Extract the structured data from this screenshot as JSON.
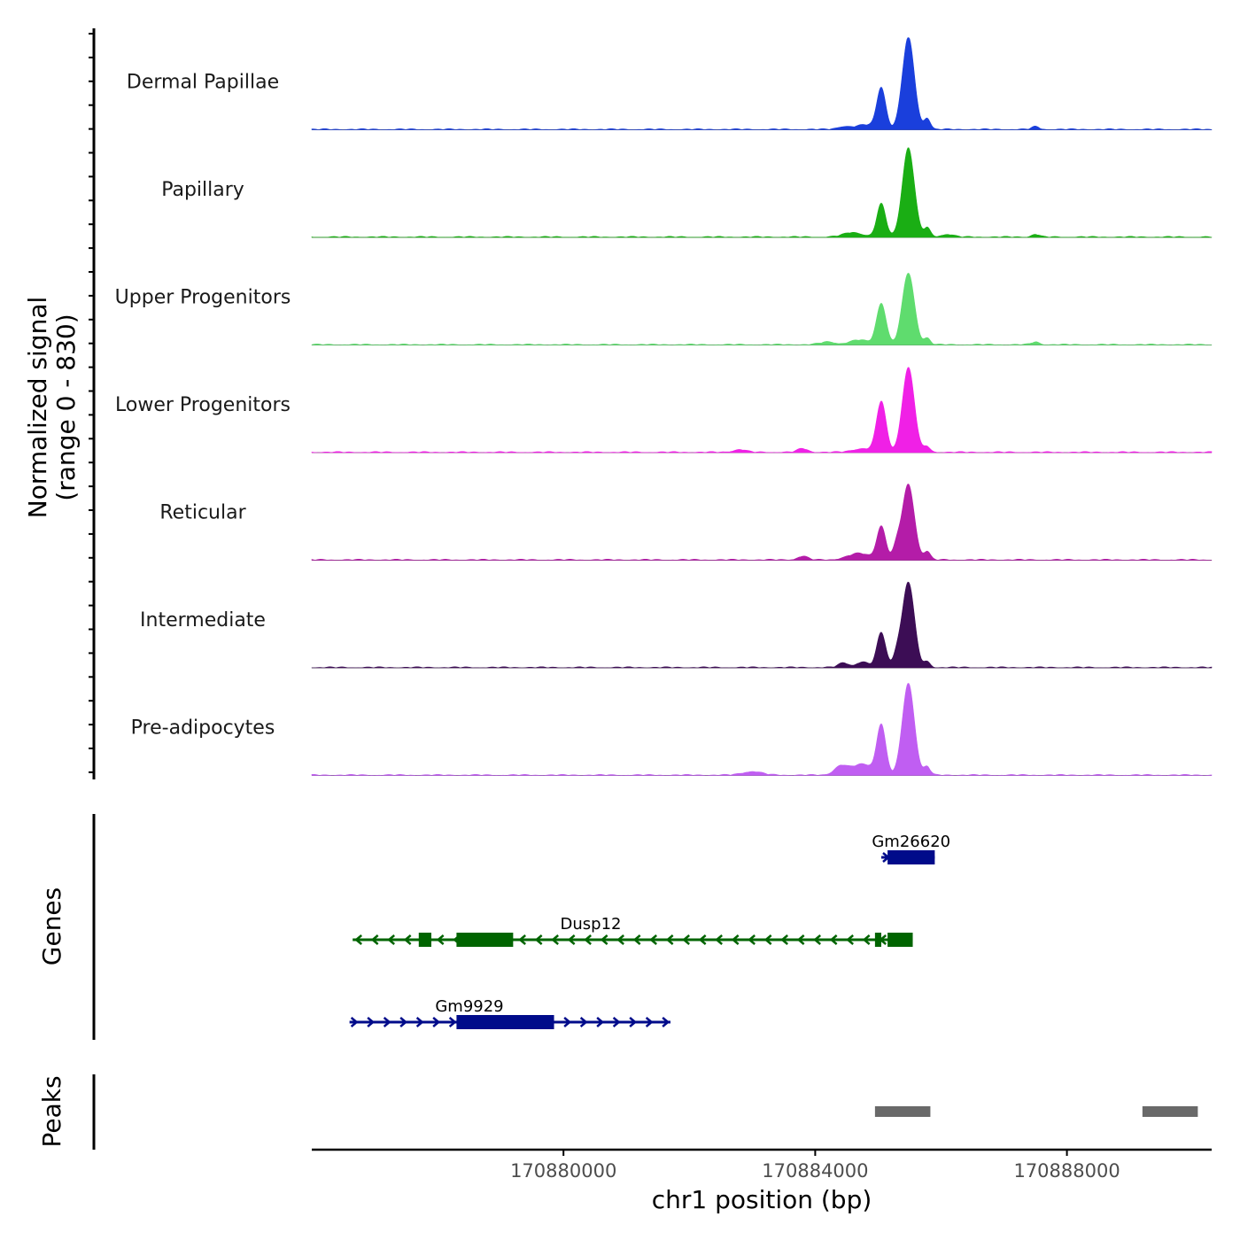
{
  "chart_data": {
    "type": "area",
    "title": "",
    "signal_axis_label": [
      "Normalized signal",
      "(range 0 - 830)"
    ],
    "ylim": [
      0,
      830
    ],
    "xlabel": "chr1 position (bp)",
    "xlim": [
      170876000,
      170890300
    ],
    "x_ticks": [
      170880000,
      170884000,
      170888000
    ],
    "x_tick_labels": [
      "170880000",
      "170884000",
      "170888000"
    ],
    "tracks": [
      {
        "name": "Dermal Papillae",
        "color": "#1a3fdc",
        "peaks": [
          {
            "x": 170885050,
            "h": 0.45,
            "w": 70
          },
          {
            "x": 170885480,
            "h": 1.0,
            "w": 95
          },
          {
            "x": 170885780,
            "h": 0.12,
            "w": 50
          },
          {
            "x": 170884800,
            "h": 0.05,
            "w": 150
          },
          {
            "x": 170884450,
            "h": 0.03,
            "w": 100
          },
          {
            "x": 170887500,
            "h": 0.03,
            "w": 60
          }
        ]
      },
      {
        "name": "Papillary",
        "color": "#1aae14",
        "peaks": [
          {
            "x": 170885050,
            "h": 0.36,
            "w": 70
          },
          {
            "x": 170885480,
            "h": 0.97,
            "w": 95
          },
          {
            "x": 170885780,
            "h": 0.1,
            "w": 50
          },
          {
            "x": 170884600,
            "h": 0.05,
            "w": 150
          },
          {
            "x": 170886100,
            "h": 0.03,
            "w": 100
          },
          {
            "x": 170887500,
            "h": 0.03,
            "w": 60
          }
        ]
      },
      {
        "name": "Upper Progenitors",
        "color": "#5fdc6e",
        "peaks": [
          {
            "x": 170885050,
            "h": 0.45,
            "w": 75
          },
          {
            "x": 170885480,
            "h": 0.78,
            "w": 95
          },
          {
            "x": 170885780,
            "h": 0.07,
            "w": 50
          },
          {
            "x": 170884700,
            "h": 0.05,
            "w": 150
          },
          {
            "x": 170884200,
            "h": 0.03,
            "w": 120
          },
          {
            "x": 170887500,
            "h": 0.03,
            "w": 60
          }
        ]
      },
      {
        "name": "Lower Progenitors",
        "color": "#f020e6",
        "peaks": [
          {
            "x": 170885050,
            "h": 0.55,
            "w": 75
          },
          {
            "x": 170885480,
            "h": 0.92,
            "w": 95
          },
          {
            "x": 170885780,
            "h": 0.06,
            "w": 50
          },
          {
            "x": 170884750,
            "h": 0.04,
            "w": 150
          },
          {
            "x": 170882800,
            "h": 0.03,
            "w": 100
          },
          {
            "x": 170883800,
            "h": 0.04,
            "w": 80
          }
        ]
      },
      {
        "name": "Reticular",
        "color": "#b41ca8",
        "peaks": [
          {
            "x": 170885050,
            "h": 0.36,
            "w": 70
          },
          {
            "x": 170885480,
            "h": 0.82,
            "w": 95
          },
          {
            "x": 170885780,
            "h": 0.09,
            "w": 50
          },
          {
            "x": 170884700,
            "h": 0.07,
            "w": 180
          },
          {
            "x": 170883800,
            "h": 0.04,
            "w": 80
          },
          {
            "x": 170885300,
            "h": 0.14,
            "w": 60
          }
        ]
      },
      {
        "name": "Intermediate",
        "color": "#3c0d55",
        "peaks": [
          {
            "x": 170885050,
            "h": 0.38,
            "w": 70
          },
          {
            "x": 170885480,
            "h": 0.93,
            "w": 95
          },
          {
            "x": 170885780,
            "h": 0.06,
            "w": 50
          },
          {
            "x": 170885300,
            "h": 0.13,
            "w": 60
          },
          {
            "x": 170884750,
            "h": 0.06,
            "w": 100
          },
          {
            "x": 170884450,
            "h": 0.05,
            "w": 80
          }
        ]
      },
      {
        "name": "Pre-adipocytes",
        "color": "#c05ef2",
        "peaks": [
          {
            "x": 170885050,
            "h": 0.53,
            "w": 70
          },
          {
            "x": 170885480,
            "h": 1.0,
            "w": 95
          },
          {
            "x": 170885780,
            "h": 0.09,
            "w": 50
          },
          {
            "x": 170884750,
            "h": 0.12,
            "w": 180
          },
          {
            "x": 170884400,
            "h": 0.09,
            "w": 100
          },
          {
            "x": 170883000,
            "h": 0.04,
            "w": 150
          }
        ]
      }
    ],
    "genes_label": "Genes",
    "genes": [
      {
        "name": "Gm26620",
        "strand": "+",
        "color": "#000b8a",
        "row": 0,
        "start": 170885050,
        "end": 170885900,
        "exons": [
          {
            "start": 170885150,
            "end": 170885900
          }
        ]
      },
      {
        "name": "Dusp12",
        "strand": "-",
        "color": "#006400",
        "row": 1,
        "start": 170876650,
        "end": 170885550,
        "exons": [
          {
            "start": 170877700,
            "end": 170877900
          },
          {
            "start": 170878300,
            "end": 170879200
          },
          {
            "start": 170884950,
            "end": 170885050
          },
          {
            "start": 170885150,
            "end": 170885550
          }
        ]
      },
      {
        "name": "Gm9929",
        "strand": "+",
        "color": "#000b8a",
        "row": 2,
        "start": 170876600,
        "end": 170881700,
        "exons": [
          {
            "start": 170878300,
            "end": 170879850
          }
        ]
      }
    ],
    "peaks_label": "Peaks",
    "peak_regions": [
      {
        "start": 170884950,
        "end": 170885830
      },
      {
        "start": 170889200,
        "end": 170890080
      }
    ],
    "peak_color": "#696969"
  }
}
